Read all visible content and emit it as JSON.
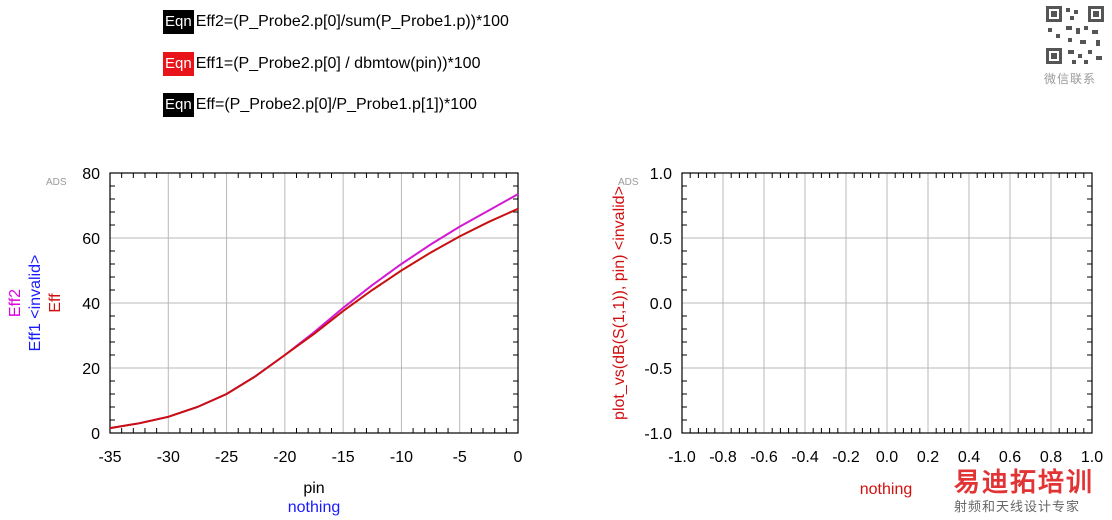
{
  "equations": [
    {
      "tag": "Eqn",
      "tag_color": "#000000",
      "text": "Eff2=(P_Probe2.p[0]/sum(P_Probe1.p))*100"
    },
    {
      "tag": "Eqn",
      "tag_color": "#e8141a",
      "text": "Eff1=(P_Probe2.p[0] / dbmtow(pin))*100"
    },
    {
      "tag": "Eqn",
      "tag_color": "#000000",
      "text": "Eff=(P_Probe2.p[0]/P_Probe1.p[1])*100"
    }
  ],
  "qr_caption": "微信联系",
  "watermark": {
    "main": "易迪拓培训",
    "sub": "射频和天线设计专家"
  },
  "chart_data": [
    {
      "type": "line",
      "badge": "ADS",
      "xlabel": "pin",
      "xlabel_sub": "nothing",
      "xlim": [
        -35,
        0
      ],
      "ylim": [
        0,
        80
      ],
      "xticks": [
        -35,
        -30,
        -25,
        -20,
        -15,
        -10,
        -5,
        0
      ],
      "yticks": [
        0,
        20,
        40,
        60,
        80
      ],
      "ylabels": [
        {
          "text": "Eff2",
          "color": "#e000e0"
        },
        {
          "text": "Eff1 <invalid>",
          "color": "#1a1aff"
        },
        {
          "text": "Eff",
          "color": "#d01010"
        }
      ],
      "series": [
        {
          "name": "Eff2",
          "color": "#d21ad2",
          "x": [
            -35,
            -32.5,
            -30,
            -27.5,
            -25,
            -22.5,
            -20,
            -17.5,
            -15,
            -12.5,
            -10,
            -7.5,
            -5,
            -2.5,
            0
          ],
          "y": [
            1.5,
            3,
            5,
            8,
            12,
            17.5,
            24,
            31,
            38.5,
            45.5,
            52,
            58,
            63.5,
            68.5,
            73.5
          ]
        },
        {
          "name": "Eff",
          "color": "#c81010",
          "x": [
            -35,
            -32.5,
            -30,
            -27.5,
            -25,
            -22.5,
            -20,
            -17.5,
            -15,
            -12.5,
            -10,
            -7.5,
            -5,
            -2.5,
            0
          ],
          "y": [
            1.5,
            3,
            5,
            8,
            12,
            17.5,
            24,
            30.5,
            37.5,
            44,
            50,
            55.5,
            60.5,
            65,
            69
          ]
        }
      ],
      "grid": true
    },
    {
      "type": "line",
      "badge": "ADS",
      "xlabel": "nothing",
      "xlim": [
        -1,
        1
      ],
      "ylim": [
        -1,
        1
      ],
      "xticks": [
        -1.0,
        -0.8,
        -0.6,
        -0.4,
        -0.2,
        0.0,
        0.2,
        0.4,
        0.6,
        0.8,
        1.0
      ],
      "yticks": [
        -1.0,
        -0.5,
        0.0,
        0.5,
        1.0
      ],
      "xtick_labels": [
        "-1.0",
        "-0.8",
        "-0.6",
        "-0.4",
        "-0.2",
        "0.0",
        "0.2",
        "0.4",
        "0.6",
        "0.8",
        "1.0"
      ],
      "ytick_labels": [
        "-1.0",
        "-0.5",
        "0.0",
        "0.5",
        "1.0"
      ],
      "ylabels": [
        {
          "text": "plot_vs(dB(S(1,1)), pin) <invalid>",
          "color": "#d01010"
        }
      ],
      "series": [],
      "grid": true
    }
  ]
}
